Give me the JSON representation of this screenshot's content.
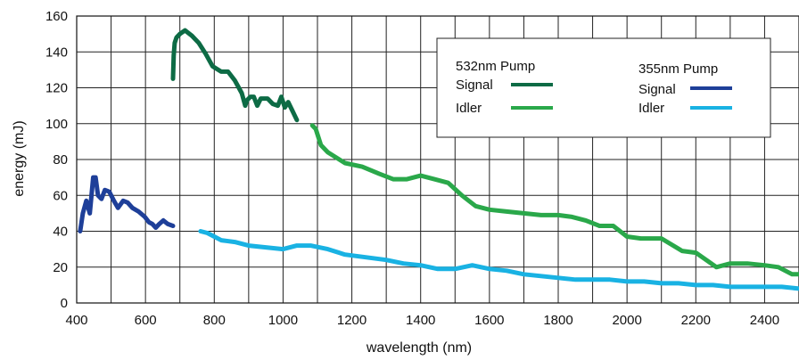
{
  "chart_data": {
    "type": "line",
    "xlabel": "wavelength (nm)",
    "ylabel": "energy (mJ)",
    "xlim": [
      400,
      2500
    ],
    "ylim": [
      0,
      160
    ],
    "x_ticks": [
      400,
      600,
      800,
      1000,
      1200,
      1400,
      1600,
      1800,
      2000,
      2200,
      2400
    ],
    "y_ticks": [
      0,
      20,
      40,
      60,
      80,
      100,
      120,
      140,
      160
    ],
    "grid": true,
    "legend": {
      "placement": "top-right",
      "groups": [
        {
          "title": "532nm Pump",
          "entries": [
            "Signal",
            "Idler"
          ]
        },
        {
          "title": "355nm Pump",
          "entries": [
            "Signal",
            "Idler"
          ]
        }
      ]
    },
    "series": [
      {
        "name": "Signal",
        "group": "532nm Pump",
        "color": "#0d6b45",
        "points": [
          [
            680,
            125
          ],
          [
            682,
            138
          ],
          [
            685,
            145
          ],
          [
            690,
            148
          ],
          [
            700,
            150
          ],
          [
            715,
            152
          ],
          [
            735,
            149
          ],
          [
            755,
            145
          ],
          [
            775,
            139
          ],
          [
            795,
            132
          ],
          [
            820,
            129
          ],
          [
            840,
            129
          ],
          [
            860,
            124
          ],
          [
            880,
            117
          ],
          [
            890,
            110
          ],
          [
            895,
            113
          ],
          [
            905,
            115
          ],
          [
            915,
            115
          ],
          [
            925,
            110
          ],
          [
            935,
            114
          ],
          [
            955,
            114
          ],
          [
            970,
            111
          ],
          [
            985,
            110
          ],
          [
            995,
            115
          ],
          [
            1005,
            109
          ],
          [
            1015,
            112
          ],
          [
            1025,
            108
          ],
          [
            1040,
            102
          ]
        ]
      },
      {
        "name": "Idler",
        "group": "532nm Pump",
        "color": "#2aa84a",
        "points": [
          [
            1085,
            99
          ],
          [
            1095,
            97
          ],
          [
            1110,
            88
          ],
          [
            1130,
            84
          ],
          [
            1180,
            78
          ],
          [
            1230,
            76
          ],
          [
            1280,
            72
          ],
          [
            1320,
            69
          ],
          [
            1360,
            69
          ],
          [
            1400,
            71
          ],
          [
            1440,
            69
          ],
          [
            1480,
            67
          ],
          [
            1520,
            60
          ],
          [
            1560,
            54
          ],
          [
            1600,
            52
          ],
          [
            1650,
            51
          ],
          [
            1700,
            50
          ],
          [
            1750,
            49
          ],
          [
            1800,
            49
          ],
          [
            1840,
            48
          ],
          [
            1880,
            46
          ],
          [
            1920,
            43
          ],
          [
            1960,
            43
          ],
          [
            2000,
            37
          ],
          [
            2040,
            36
          ],
          [
            2100,
            36
          ],
          [
            2160,
            29
          ],
          [
            2200,
            28
          ],
          [
            2230,
            24
          ],
          [
            2260,
            20
          ],
          [
            2300,
            22
          ],
          [
            2350,
            22
          ],
          [
            2400,
            21
          ],
          [
            2440,
            20
          ],
          [
            2480,
            16
          ],
          [
            2500,
            16
          ]
        ]
      },
      {
        "name": "Signal",
        "group": "355nm Pump",
        "color": "#1e3f99",
        "points": [
          [
            410,
            40
          ],
          [
            418,
            50
          ],
          [
            428,
            57
          ],
          [
            438,
            50
          ],
          [
            448,
            70
          ],
          [
            455,
            70
          ],
          [
            462,
            60
          ],
          [
            472,
            58
          ],
          [
            482,
            63
          ],
          [
            495,
            62
          ],
          [
            508,
            57
          ],
          [
            520,
            53
          ],
          [
            535,
            57
          ],
          [
            548,
            56
          ],
          [
            562,
            53
          ],
          [
            580,
            51
          ],
          [
            598,
            48
          ],
          [
            610,
            45
          ],
          [
            620,
            44
          ],
          [
            630,
            42
          ],
          [
            640,
            44
          ],
          [
            652,
            46
          ],
          [
            665,
            44
          ],
          [
            680,
            43
          ]
        ]
      },
      {
        "name": "Idler",
        "group": "355nm Pump",
        "color": "#19b2e3",
        "points": [
          [
            760,
            40
          ],
          [
            780,
            39
          ],
          [
            800,
            37
          ],
          [
            820,
            35
          ],
          [
            860,
            34
          ],
          [
            900,
            32
          ],
          [
            950,
            31
          ],
          [
            1000,
            30
          ],
          [
            1040,
            32
          ],
          [
            1080,
            32
          ],
          [
            1130,
            30
          ],
          [
            1180,
            27
          ],
          [
            1220,
            26
          ],
          [
            1260,
            25
          ],
          [
            1300,
            24
          ],
          [
            1350,
            22
          ],
          [
            1400,
            21
          ],
          [
            1450,
            19
          ],
          [
            1500,
            19
          ],
          [
            1550,
            21
          ],
          [
            1600,
            19
          ],
          [
            1650,
            18
          ],
          [
            1700,
            16
          ],
          [
            1750,
            15
          ],
          [
            1800,
            14
          ],
          [
            1850,
            13
          ],
          [
            1900,
            13
          ],
          [
            1950,
            13
          ],
          [
            2000,
            12
          ],
          [
            2050,
            12
          ],
          [
            2100,
            11
          ],
          [
            2150,
            11
          ],
          [
            2200,
            10
          ],
          [
            2250,
            10
          ],
          [
            2300,
            9
          ],
          [
            2350,
            9
          ],
          [
            2400,
            9
          ],
          [
            2450,
            9
          ],
          [
            2500,
            8
          ]
        ]
      }
    ]
  }
}
